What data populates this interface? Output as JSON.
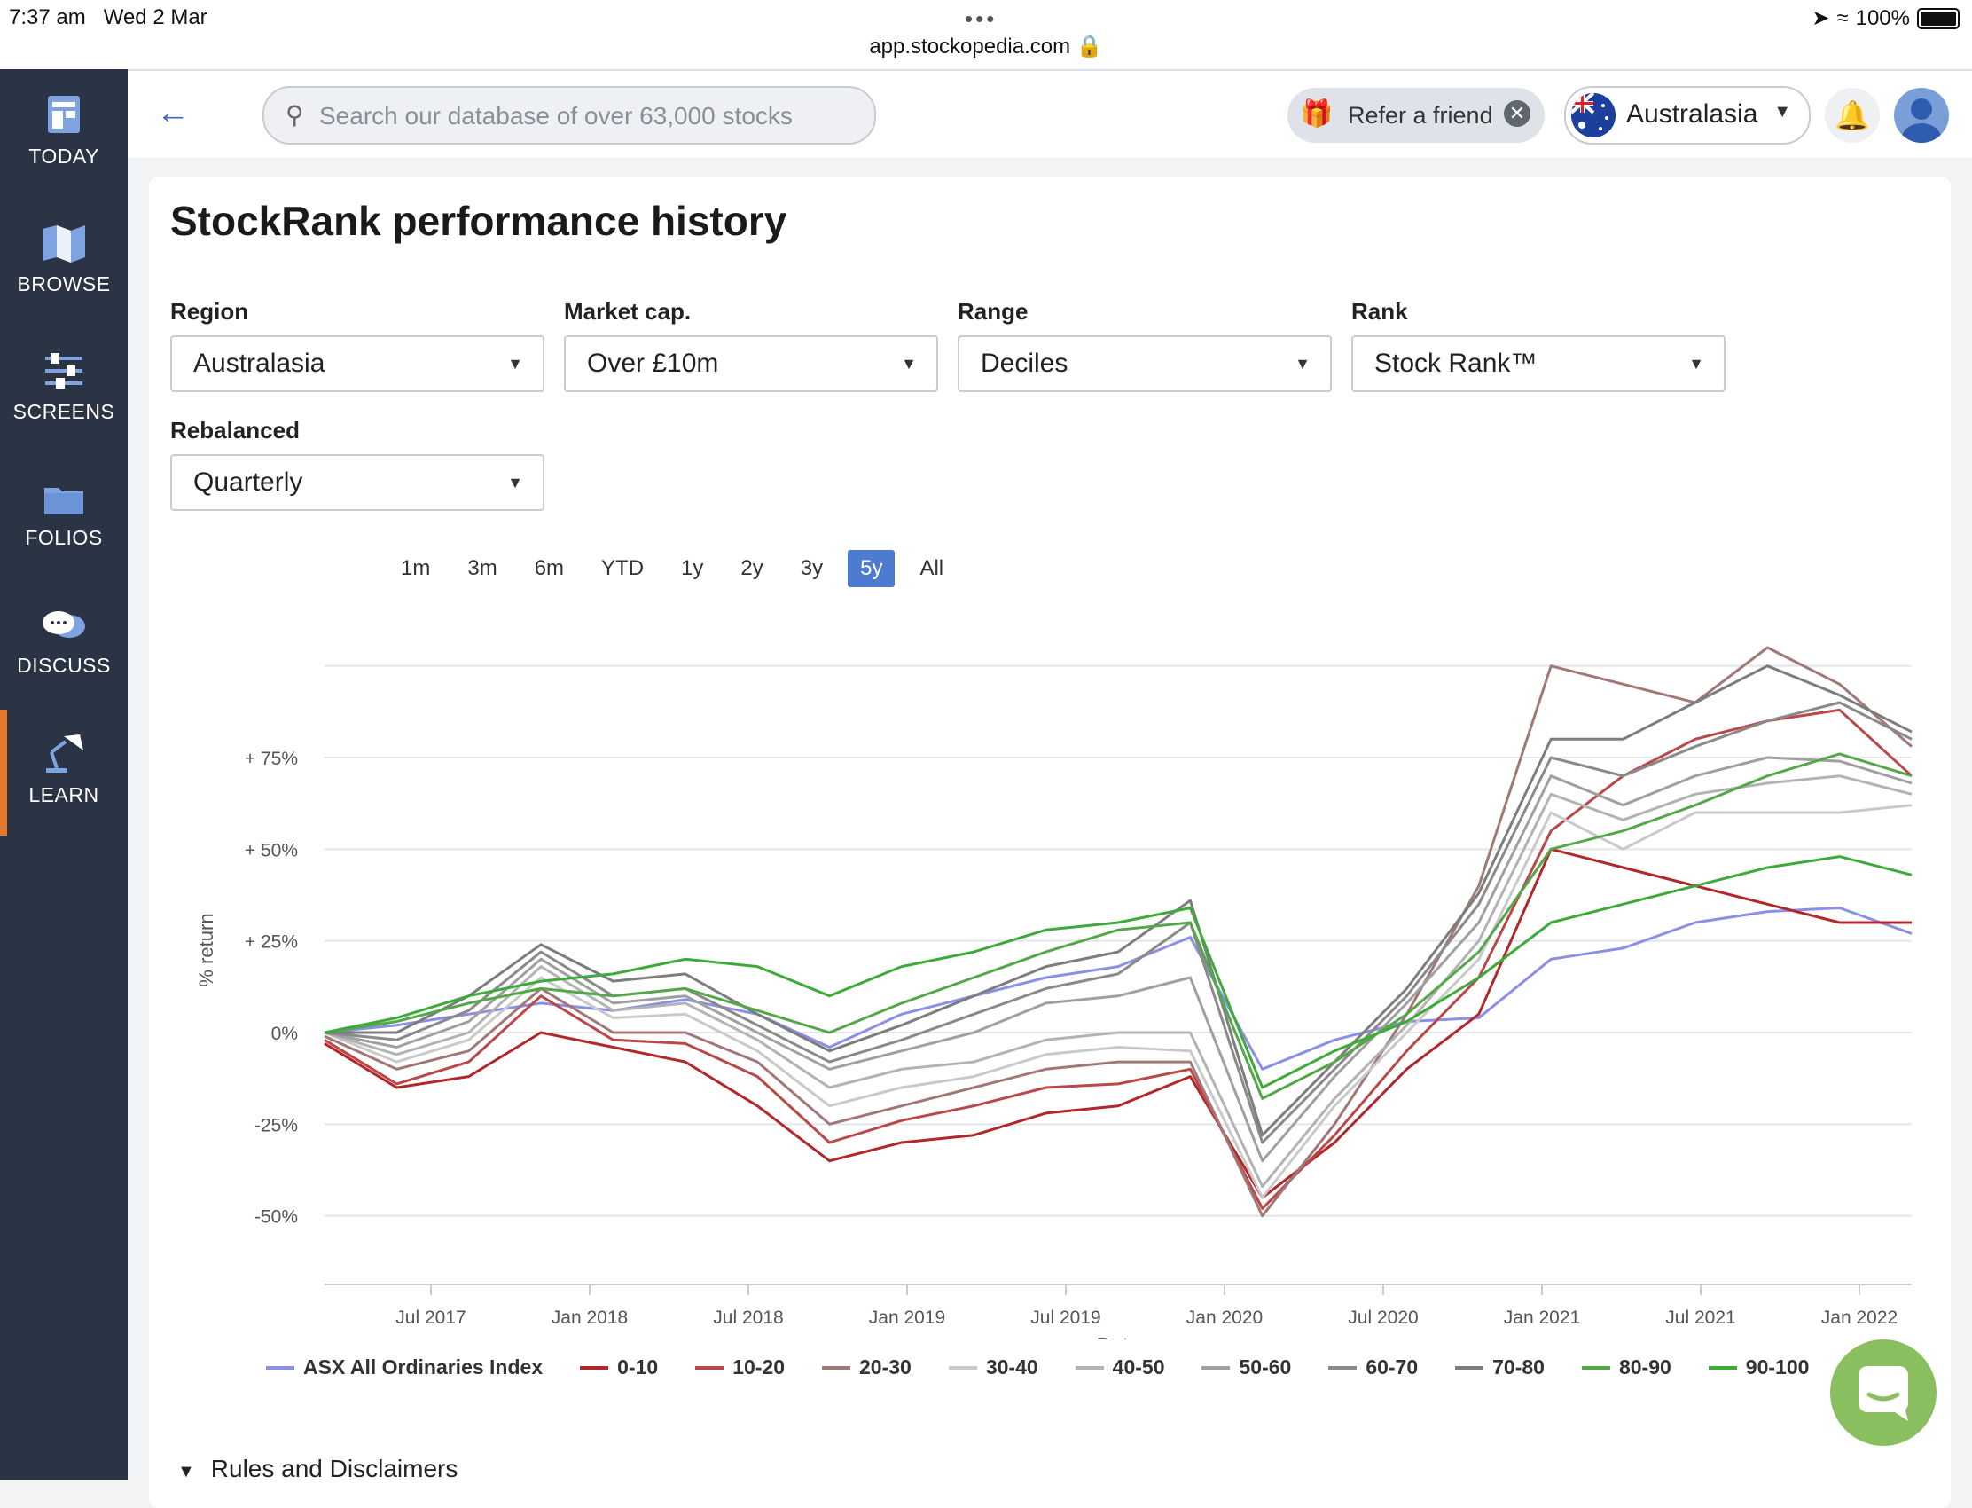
{
  "status_bar": {
    "time": "7:37 am",
    "date": "Wed 2 Mar",
    "url": "app.stockopedia.com",
    "battery": "100%"
  },
  "sidebar": {
    "items": [
      {
        "label": "TODAY",
        "icon": "today-icon"
      },
      {
        "label": "BROWSE",
        "icon": "map-icon"
      },
      {
        "label": "SCREENS",
        "icon": "sliders-icon"
      },
      {
        "label": "FOLIOS",
        "icon": "folder-icon"
      },
      {
        "label": "DISCUSS",
        "icon": "chat-bubbles-icon"
      },
      {
        "label": "LEARN",
        "icon": "lamp-icon"
      }
    ],
    "active": "LEARN"
  },
  "topbar": {
    "search_placeholder": "Search our database of over 63,000 stocks",
    "refer_label": "Refer a friend",
    "region_label": "Australasia"
  },
  "page": {
    "title": "StockRank performance history",
    "filters": {
      "region": {
        "label": "Region",
        "value": "Australasia"
      },
      "market_cap": {
        "label": "Market cap.",
        "value": "Over £10m"
      },
      "range": {
        "label": "Range",
        "value": "Deciles"
      },
      "rank": {
        "label": "Rank",
        "value": "Stock Rank™"
      },
      "rebalanced": {
        "label": "Rebalanced",
        "value": "Quarterly"
      }
    },
    "time_ranges": [
      "1m",
      "3m",
      "6m",
      "YTD",
      "1y",
      "2y",
      "3y",
      "5y",
      "All"
    ],
    "time_range_selected": "5y",
    "rules_label": "Rules and Disclaimers"
  },
  "chart_data": {
    "type": "line",
    "xlabel": "Date",
    "ylabel": "% return",
    "ylim": [
      -60,
      105
    ],
    "yticks": [
      -50,
      -25,
      0,
      25,
      50,
      75
    ],
    "ytick_labels": [
      "-50%",
      "-25%",
      "0%",
      "+ 25%",
      "+ 50%",
      "+ 75%"
    ],
    "xtick_labels": [
      "Jul 2017",
      "Jan 2018",
      "Jul 2018",
      "Jan 2019",
      "Jul 2019",
      "Jan 2020",
      "Jul 2020",
      "Jan 2021",
      "Jul 2021",
      "Jan 2022"
    ],
    "x": [
      "Mar 2017",
      "Jul 2017",
      "Oct 2017",
      "Jan 2018",
      "Apr 2018",
      "Jul 2018",
      "Oct 2018",
      "Jan 2019",
      "Apr 2019",
      "Jul 2019",
      "Oct 2019",
      "Jan 2020",
      "Feb 2020",
      "Mar 2020",
      "Apr 2020",
      "Jul 2020",
      "Oct 2020",
      "Jan 2021",
      "Apr 2021",
      "Jul 2021",
      "Oct 2021",
      "Jan 2022",
      "Mar 2022"
    ],
    "series": [
      {
        "name": "ASX All Ordinaries Index",
        "color": "#8c8fe6",
        "values": [
          0,
          2,
          5,
          8,
          6,
          9,
          5,
          -4,
          5,
          10,
          15,
          18,
          26,
          -10,
          -2,
          3,
          4,
          20,
          23,
          30,
          33,
          34,
          27
        ]
      },
      {
        "name": "0-10",
        "color": "#b2282a",
        "values": [
          -3,
          -15,
          -12,
          0,
          -4,
          -8,
          -20,
          -35,
          -30,
          -28,
          -22,
          -20,
          -12,
          -45,
          -30,
          -10,
          5,
          50,
          45,
          40,
          35,
          30,
          30
        ]
      },
      {
        "name": "10-20",
        "color": "#b8484a",
        "values": [
          -2,
          -14,
          -8,
          10,
          -2,
          -3,
          -12,
          -30,
          -24,
          -20,
          -15,
          -14,
          -10,
          -48,
          -28,
          -5,
          15,
          55,
          70,
          80,
          85,
          88,
          70
        ]
      },
      {
        "name": "20-30",
        "color": "#a07878",
        "values": [
          -1,
          -10,
          -5,
          12,
          0,
          0,
          -8,
          -25,
          -20,
          -15,
          -10,
          -8,
          -8,
          -50,
          -25,
          5,
          40,
          100,
          95,
          90,
          105,
          95,
          78
        ]
      },
      {
        "name": "30-40",
        "color": "#c9c9c9",
        "values": [
          0,
          -8,
          -2,
          15,
          4,
          5,
          -5,
          -20,
          -15,
          -12,
          -6,
          -4,
          -5,
          -45,
          -20,
          0,
          20,
          60,
          50,
          60,
          60,
          60,
          62
        ]
      },
      {
        "name": "40-50",
        "color": "#b3b3b3",
        "values": [
          0,
          -6,
          0,
          18,
          6,
          8,
          -2,
          -15,
          -10,
          -8,
          -2,
          0,
          0,
          -42,
          -18,
          2,
          25,
          65,
          58,
          65,
          68,
          70,
          65
        ]
      },
      {
        "name": "50-60",
        "color": "#a0a0a0",
        "values": [
          0,
          -4,
          3,
          20,
          8,
          10,
          0,
          -10,
          -5,
          0,
          8,
          10,
          15,
          -35,
          -12,
          8,
          30,
          70,
          62,
          70,
          75,
          74,
          68
        ]
      },
      {
        "name": "60-70",
        "color": "#8a8a8a",
        "values": [
          0,
          -2,
          6,
          22,
          10,
          12,
          2,
          -8,
          -2,
          5,
          12,
          16,
          30,
          -30,
          -10,
          10,
          35,
          75,
          70,
          78,
          85,
          90,
          80
        ]
      },
      {
        "name": "70-80",
        "color": "#7d7d7d",
        "values": [
          0,
          0,
          10,
          24,
          14,
          16,
          5,
          -5,
          2,
          10,
          18,
          22,
          36,
          -28,
          -8,
          12,
          38,
          80,
          80,
          90,
          100,
          92,
          82
        ]
      },
      {
        "name": "80-90",
        "color": "#55a84a",
        "values": [
          0,
          3,
          8,
          12,
          10,
          12,
          6,
          0,
          8,
          15,
          22,
          28,
          30,
          -18,
          -8,
          5,
          22,
          50,
          55,
          62,
          70,
          76,
          70
        ]
      },
      {
        "name": "90-100",
        "color": "#3dab3a",
        "values": [
          0,
          4,
          10,
          14,
          16,
          20,
          18,
          10,
          18,
          22,
          28,
          30,
          34,
          -15,
          -5,
          3,
          15,
          30,
          35,
          40,
          45,
          48,
          43
        ]
      }
    ]
  }
}
